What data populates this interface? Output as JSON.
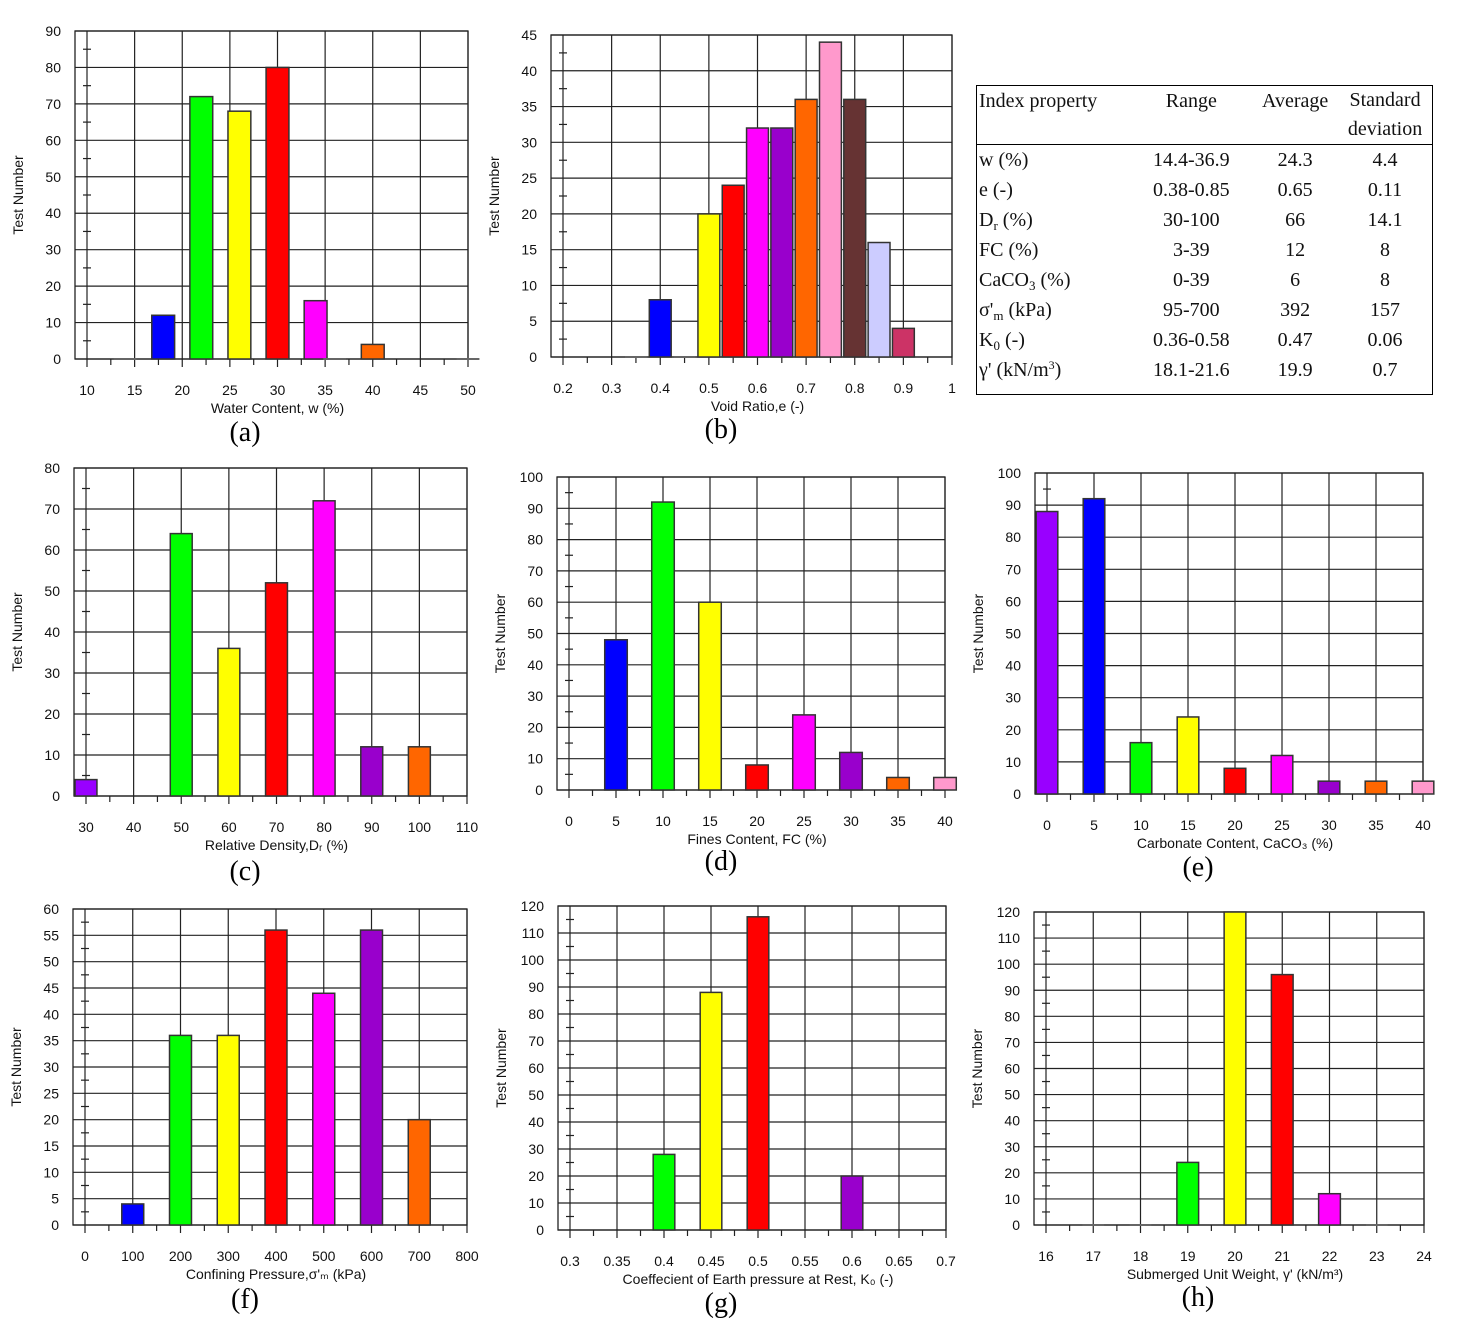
{
  "table": {
    "headers": [
      "Index property",
      "Range",
      "Average",
      "Standard deviation"
    ],
    "rows": [
      {
        "base": "w",
        "sub": "",
        "sup": "",
        "rest": " (%)",
        "range": "14.4-36.9",
        "average": "24.3",
        "std": "4.4"
      },
      {
        "base": "e",
        "sub": "",
        "sup": "",
        "rest": " (-)",
        "range": "0.38-0.85",
        "average": "0.65",
        "std": "0.11"
      },
      {
        "base": "D",
        "sub": "r",
        "sup": "",
        "rest": " (%)",
        "range": "30-100",
        "average": "66",
        "std": "14.1"
      },
      {
        "base": "FC",
        "sub": "",
        "sup": "",
        "rest": " (%)",
        "range": "3-39",
        "average": "12",
        "std": "8"
      },
      {
        "base": "CaCO",
        "sub": "3",
        "sup": "",
        "rest": " (%)",
        "range": "0-39",
        "average": "6",
        "std": "8"
      },
      {
        "base": "σ'",
        "sub": "m",
        "sup": "",
        "rest": " (kPa)",
        "range": "95-700",
        "average": "392",
        "std": "157"
      },
      {
        "base": "K",
        "sub": "0",
        "sup": "",
        "rest": " (-)",
        "range": "0.36-0.58",
        "average": "0.47",
        "std": "0.06"
      },
      {
        "base": "γ' (kN/m",
        "sub": "",
        "sup": "3",
        "rest": ")",
        "range": "18.1-21.6",
        "average": "19.9",
        "std": "0.7"
      }
    ]
  },
  "chart_data": [
    {
      "id": "a",
      "caption": "(a)",
      "type": "bar",
      "xlabel": "Water Content, w (%)",
      "ylabel": "Test Number",
      "xlim": [
        10,
        50
      ],
      "ylim": [
        0,
        90
      ],
      "grid": true,
      "x_ticks": [
        10,
        15,
        20,
        25,
        30,
        35,
        40,
        45,
        50
      ],
      "y_ticks": [
        0,
        10,
        20,
        30,
        40,
        50,
        60,
        70,
        80,
        90
      ],
      "x": [
        14,
        18,
        22,
        26,
        30,
        34,
        36,
        40,
        50
      ],
      "values": [
        0,
        12,
        72,
        68,
        80,
        16,
        0,
        4,
        0
      ],
      "colors": [
        "#0000ff",
        "#0000ff",
        "#00ff00",
        "#ffff00",
        "#ff0000",
        "#ff00ff",
        "#ff00ff",
        "#ff6600",
        "#ff6600"
      ]
    },
    {
      "id": "b",
      "caption": "(b)",
      "type": "bar",
      "xlabel": "Void Ratio,e (-)",
      "ylabel": "Test Number",
      "xlim": [
        0.2,
        1
      ],
      "ylim": [
        0,
        45
      ],
      "grid": true,
      "x_ticks": [
        0.2,
        0.3,
        0.4,
        0.5,
        0.6,
        0.7,
        0.8,
        0.9,
        1
      ],
      "y_ticks": [
        0,
        5,
        10,
        15,
        20,
        25,
        30,
        35,
        40,
        45
      ],
      "x": [
        0.35,
        0.4,
        0.45,
        0.5,
        0.55,
        0.6,
        0.65,
        0.7,
        0.75,
        0.8,
        0.85,
        0.9
      ],
      "values": [
        0,
        8,
        0,
        20,
        24,
        32,
        32,
        36,
        44,
        36,
        16,
        4
      ],
      "colors": [
        "#0000ff",
        "#0000ff",
        "#0000ff",
        "#ffff00",
        "#ff0000",
        "#ff00ff",
        "#9900cc",
        "#ff6600",
        "#ff99cc",
        "#663333",
        "#ccccff",
        "#cc3366"
      ]
    },
    {
      "id": "c",
      "caption": "(c)",
      "type": "bar",
      "xlabel": "Relative Density,Dᵣ (%)",
      "ylabel": "Test Number",
      "xlim": [
        30,
        110
      ],
      "ylim": [
        0,
        80
      ],
      "grid": true,
      "x_ticks": [
        30,
        40,
        50,
        60,
        70,
        80,
        90,
        100,
        110
      ],
      "y_ticks": [
        0,
        10,
        20,
        30,
        40,
        50,
        60,
        70,
        80
      ],
      "x": [
        30,
        50,
        60,
        70,
        80,
        90,
        100
      ],
      "values": [
        4,
        64,
        36,
        52,
        72,
        12,
        12
      ],
      "colors": [
        "#9900ff",
        "#00ff00",
        "#ffff00",
        "#ff0000",
        "#ff00ff",
        "#9900cc",
        "#ff6600"
      ]
    },
    {
      "id": "d",
      "caption": "(d)",
      "type": "bar",
      "xlabel": "Fines Content, FC (%)",
      "ylabel": "Test Number",
      "xlim": [
        0,
        40
      ],
      "ylim": [
        0,
        100
      ],
      "grid": true,
      "x_ticks": [
        0,
        5,
        10,
        15,
        20,
        25,
        30,
        35,
        40
      ],
      "y_ticks": [
        0,
        10,
        20,
        30,
        40,
        50,
        60,
        70,
        80,
        90,
        100
      ],
      "x": [
        5,
        10,
        15,
        20,
        25,
        30,
        35,
        40
      ],
      "values": [
        48,
        92,
        60,
        8,
        24,
        12,
        4,
        4
      ],
      "colors": [
        "#0000ff",
        "#00ff00",
        "#ffff00",
        "#ff0000",
        "#ff00ff",
        "#9900cc",
        "#ff6600",
        "#ff99cc"
      ]
    },
    {
      "id": "e",
      "caption": "(e)",
      "type": "bar",
      "xlabel": "Carbonate Content, CaCO₃ (%)",
      "ylabel": "Test Number",
      "xlim": [
        0,
        40
      ],
      "ylim": [
        0,
        100
      ],
      "grid": true,
      "x_ticks": [
        0,
        5,
        10,
        15,
        20,
        25,
        30,
        35,
        40
      ],
      "y_ticks": [
        0,
        10,
        20,
        30,
        40,
        50,
        60,
        70,
        80,
        90,
        100
      ],
      "x": [
        0,
        5,
        10,
        15,
        20,
        25,
        30,
        35,
        40
      ],
      "values": [
        88,
        92,
        16,
        24,
        8,
        12,
        4,
        4,
        4
      ],
      "colors": [
        "#9900ff",
        "#0000ff",
        "#00ff00",
        "#ffff00",
        "#ff0000",
        "#ff00ff",
        "#9900cc",
        "#ff6600",
        "#ff99cc"
      ]
    },
    {
      "id": "f",
      "caption": "(f)",
      "type": "bar",
      "xlabel": "Confining Pressure,σ'ₘ (kPa)",
      "ylabel": "Test Number",
      "xlim": [
        0,
        800
      ],
      "ylim": [
        0,
        60
      ],
      "grid": true,
      "x_ticks": [
        0,
        100,
        200,
        300,
        400,
        500,
        600,
        700,
        800
      ],
      "y_ticks": [
        0,
        5,
        10,
        15,
        20,
        25,
        30,
        35,
        40,
        45,
        50,
        55,
        60
      ],
      "x": [
        100,
        200,
        300,
        400,
        500,
        600,
        700
      ],
      "values": [
        4,
        36,
        36,
        56,
        44,
        56,
        20
      ],
      "colors": [
        "#0000ff",
        "#00ff00",
        "#ffff00",
        "#ff0000",
        "#ff00ff",
        "#9900cc",
        "#ff6600"
      ]
    },
    {
      "id": "g",
      "caption": "(g)",
      "type": "bar",
      "xlabel": "Coeffecient of Earth pressure at Rest, K₀ (-)",
      "ylabel": "Test Number",
      "xlim": [
        0.3,
        0.7
      ],
      "ylim": [
        0,
        120
      ],
      "grid": true,
      "x_ticks": [
        0.3,
        0.35,
        0.4,
        0.45,
        0.5,
        0.55,
        0.6,
        0.65,
        0.7
      ],
      "y_ticks": [
        0,
        10,
        20,
        30,
        40,
        50,
        60,
        70,
        80,
        90,
        100,
        110,
        120
      ],
      "x": [
        0.4,
        0.45,
        0.5,
        0.6
      ],
      "values": [
        28,
        88,
        116,
        20
      ],
      "colors": [
        "#00ff00",
        "#ffff00",
        "#ff0000",
        "#9900cc"
      ]
    },
    {
      "id": "h",
      "caption": "(h)",
      "type": "bar",
      "xlabel": "Submerged Unit Weight, γ' (kN/m³)",
      "ylabel": "Test Number",
      "xlim": [
        16,
        24
      ],
      "ylim": [
        0,
        120
      ],
      "grid": true,
      "x_ticks": [
        16,
        17,
        18,
        19,
        20,
        21,
        22,
        23,
        24
      ],
      "y_ticks": [
        0,
        10,
        20,
        30,
        40,
        50,
        60,
        70,
        80,
        90,
        100,
        110,
        120
      ],
      "x": [
        17,
        18,
        19,
        20,
        21,
        22,
        23
      ],
      "values": [
        0,
        0,
        24,
        120,
        96,
        12,
        0
      ],
      "colors": [
        "#00ff00",
        "#00ff00",
        "#00ff00",
        "#ffff00",
        "#ff0000",
        "#ff00ff",
        "#ff00ff"
      ]
    }
  ]
}
